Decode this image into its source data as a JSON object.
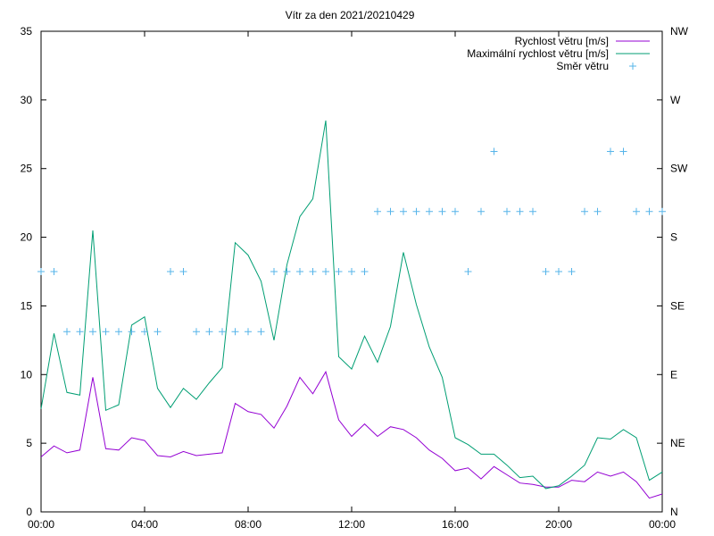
{
  "chart_data": {
    "type": "line",
    "title": "Vítr za den 2021/20210429",
    "xlabel": "",
    "ylabel": "",
    "x_ticks": [
      "00:00",
      "04:00",
      "08:00",
      "12:00",
      "16:00",
      "20:00",
      "00:00"
    ],
    "y_ticks": [
      "0",
      "5",
      "10",
      "15",
      "20",
      "25",
      "30",
      "35"
    ],
    "y2_ticks": [
      "N",
      "NE",
      "E",
      "SE",
      "S",
      "SW",
      "W",
      "NW"
    ],
    "xlim": [
      0,
      24
    ],
    "ylim": [
      0,
      35
    ],
    "y2lim": [
      0,
      8
    ],
    "grid": false,
    "legend_position": "top-right",
    "series": [
      {
        "name": "Rychlost větru [m/s]",
        "color": "#9400d3",
        "axis": "y1",
        "x": [
          0,
          0.5,
          1,
          1.5,
          2,
          2.5,
          3,
          3.5,
          4,
          4.5,
          5,
          5.5,
          6,
          6.5,
          7,
          7.5,
          8,
          8.5,
          9,
          9.5,
          10,
          10.5,
          11,
          11.5,
          12,
          12.5,
          13,
          13.5,
          14,
          14.5,
          15,
          15.5,
          16,
          16.5,
          17,
          17.5,
          18,
          18.5,
          19,
          19.5,
          20,
          20.5,
          21,
          21.5,
          22,
          22.5,
          23,
          23.5,
          24
        ],
        "values": [
          4.0,
          4.8,
          4.3,
          4.5,
          9.8,
          4.6,
          4.5,
          5.4,
          5.2,
          4.1,
          4.0,
          4.4,
          4.1,
          4.2,
          4.3,
          7.9,
          7.3,
          7.1,
          6.1,
          7.7,
          9.8,
          8.6,
          10.2,
          6.7,
          5.5,
          6.4,
          5.5,
          6.2,
          6.0,
          5.4,
          4.5,
          3.9,
          3.0,
          3.2,
          2.4,
          3.3,
          2.7,
          2.1,
          2.0,
          1.8,
          1.8,
          2.3,
          2.2,
          2.9,
          2.6,
          2.9,
          2.2,
          1.0,
          1.3
        ]
      },
      {
        "name": "Maximální rychlost větru [m/s]",
        "color": "#009e73",
        "axis": "y1",
        "x": [
          0,
          0.5,
          1,
          1.5,
          2,
          2.5,
          3,
          3.5,
          4,
          4.5,
          5,
          5.5,
          6,
          6.5,
          7,
          7.5,
          8,
          8.5,
          9,
          9.5,
          10,
          10.5,
          11,
          11.5,
          12,
          12.5,
          13,
          13.5,
          14,
          14.5,
          15,
          15.5,
          16,
          16.5,
          17,
          17.5,
          18,
          18.5,
          19,
          19.5,
          20,
          20.5,
          21,
          21.5,
          22,
          22.5,
          23,
          23.5,
          24
        ],
        "values": [
          7.5,
          13.0,
          8.7,
          8.5,
          20.5,
          7.4,
          7.8,
          13.6,
          14.2,
          9.0,
          7.6,
          9.0,
          8.2,
          9.4,
          10.5,
          19.6,
          18.7,
          16.8,
          12.5,
          18.0,
          21.5,
          22.8,
          28.5,
          11.3,
          10.4,
          12.8,
          10.9,
          13.5,
          18.9,
          15.1,
          12.0,
          9.8,
          5.4,
          4.9,
          4.2,
          4.2,
          3.4,
          2.5,
          2.6,
          1.7,
          1.9,
          2.6,
          3.4,
          5.4,
          5.3,
          6.0,
          5.4,
          2.3,
          2.9
        ]
      },
      {
        "name": "Směr větru",
        "color": "#56b4e9",
        "axis": "y2",
        "style": "points",
        "x": [
          0,
          0.5,
          1,
          1.5,
          2,
          2.5,
          3,
          3.5,
          4,
          4.5,
          5,
          5.5,
          6,
          6.5,
          7,
          7.5,
          8,
          8.5,
          9,
          9.5,
          10,
          10.5,
          11,
          11.5,
          12,
          12.5,
          13,
          13.5,
          14,
          14.5,
          15,
          15.5,
          16,
          16.5,
          17,
          17.5,
          18,
          18.5,
          19,
          19.5,
          20,
          20.5,
          21,
          21.5,
          22,
          22.5,
          23,
          23.5,
          24
        ],
        "values": [
          4,
          4,
          3,
          3,
          3,
          3,
          3,
          3,
          3,
          3,
          4,
          4,
          3,
          3,
          3,
          3,
          3,
          3,
          4,
          4,
          4,
          4,
          4,
          4,
          4,
          4,
          5,
          5,
          5,
          5,
          5,
          5,
          5,
          4,
          5,
          6,
          5,
          5,
          5,
          4,
          4,
          4,
          5,
          5,
          6,
          6,
          5,
          5,
          5
        ]
      }
    ]
  },
  "legend": {
    "items": [
      {
        "label": "Rychlost větru [m/s]",
        "color": "#9400d3",
        "marker": "line"
      },
      {
        "label": "Maximální rychlost větru [m/s]",
        "color": "#009e73",
        "marker": "line"
      },
      {
        "label": "Směr větru",
        "color": "#56b4e9",
        "marker": "plus"
      }
    ]
  }
}
